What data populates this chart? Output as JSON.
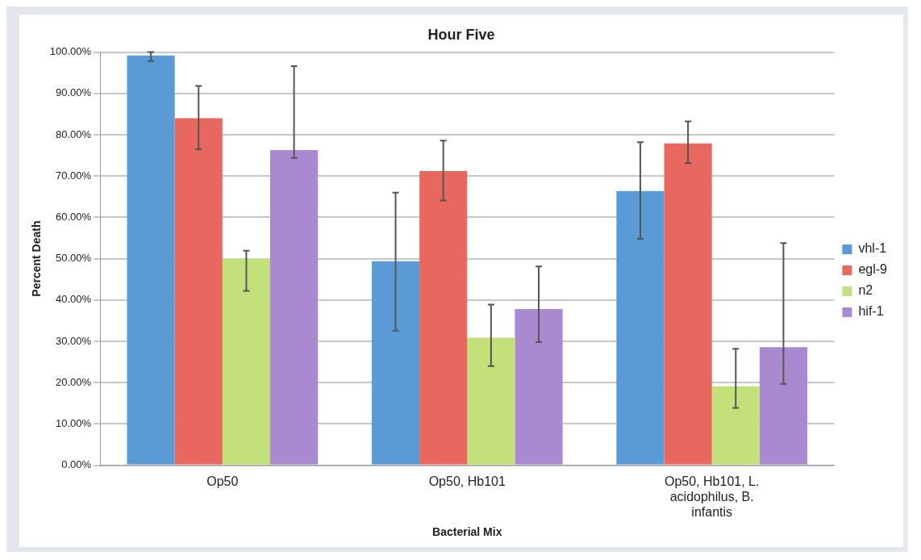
{
  "chart_data": {
    "type": "bar",
    "title": "Hour Five",
    "xlabel": "Bacterial Mix",
    "ylabel": "Percent Death",
    "categories": [
      "Op50",
      "Op50, Hb101",
      "Op50, Hb101, L. acidophilus, B. infantis"
    ],
    "series": [
      {
        "name": "vhl-1",
        "color": "#5b9bd5",
        "values": [
          99.2,
          49.4,
          66.4
        ],
        "errors": [
          [
            97.8,
            100
          ],
          [
            32.6,
            66.0
          ],
          [
            54.8,
            78.2
          ]
        ]
      },
      {
        "name": "egl-9",
        "color": "#e8675e",
        "values": [
          84.0,
          71.2,
          77.9
        ],
        "errors": [
          [
            76.5,
            91.8
          ],
          [
            64.1,
            78.6
          ],
          [
            73.1,
            83.2
          ]
        ]
      },
      {
        "name": "n2",
        "color": "#c4e07a",
        "values": [
          50.0,
          30.9,
          19.1
        ],
        "errors": [
          [
            42.2,
            51.9
          ],
          [
            24.0,
            38.9
          ],
          [
            13.9,
            28.2
          ]
        ]
      },
      {
        "name": "hif-1",
        "color": "#a98ad0",
        "values": [
          76.3,
          37.8,
          28.6
        ],
        "errors": [
          [
            74.4,
            96.6
          ],
          [
            29.8,
            48.1
          ],
          [
            19.7,
            53.8
          ]
        ]
      }
    ],
    "ylim": [
      0,
      100
    ],
    "yticks": [
      {
        "value": 0,
        "label": "0.00%"
      },
      {
        "value": 10,
        "label": "10.00%"
      },
      {
        "value": 20,
        "label": "20.00%"
      },
      {
        "value": 30,
        "label": "30.00%"
      },
      {
        "value": 40,
        "label": "40.00%"
      },
      {
        "value": 50,
        "label": "50.00%"
      },
      {
        "value": 60,
        "label": "60.00%"
      },
      {
        "value": 70,
        "label": "70.00%"
      },
      {
        "value": 80,
        "label": "80.00%"
      },
      {
        "value": 90,
        "label": "90.00%"
      },
      {
        "value": 100,
        "label": "100.00%"
      }
    ],
    "grid": "y",
    "legend": "right"
  }
}
